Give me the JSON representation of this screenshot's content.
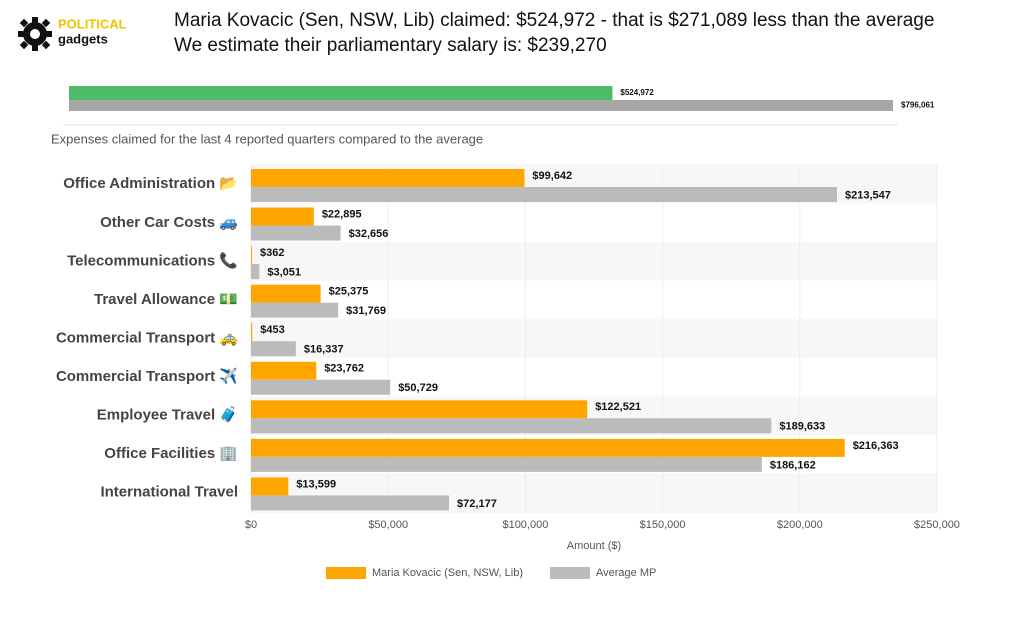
{
  "logo": {
    "top": "POLITICAL",
    "bottom": "gadgets"
  },
  "header": {
    "line1": "Maria Kovacic (Sen, NSW, Lib) claimed: $524,972 - that is $271,089 less than the average",
    "line2": "We estimate their parliamentary salary is: $239,270"
  },
  "chart_data": [
    {
      "type": "bar",
      "orientation": "horizontal",
      "values": [
        524972,
        796061
      ],
      "value_labels": [
        "$524,972",
        "$796,061"
      ],
      "colors": [
        "#4dbb6a",
        "#a6a6a6"
      ]
    },
    {
      "type": "bar",
      "orientation": "horizontal",
      "title": "Expenses claimed for the last 4 reported quarters compared to the average",
      "xlabel": "Amount ($)",
      "categories": [
        "Office Administration 📂",
        "Other Car Costs 🚙",
        "Telecommunications 📞",
        "Travel Allowance 💵",
        "Commercial Transport 🚕",
        "Commercial Transport ✈️",
        "Employee Travel 🧳",
        "Office Facilities 🏢",
        "International Travel"
      ],
      "series": [
        {
          "name": "Maria Kovacic  (Sen, NSW, Lib)",
          "color": "#ffa500",
          "values": [
            99642,
            22895,
            362,
            25375,
            453,
            23762,
            122521,
            216363,
            13599
          ],
          "value_labels": [
            "$99,642",
            "$22,895",
            "$362",
            "$25,375",
            "$453",
            "$23,762",
            "$122,521",
            "$216,363",
            "$13,599"
          ]
        },
        {
          "name": "Average MP",
          "color": "#bbbbbb",
          "values": [
            213547,
            32656,
            3051,
            31769,
            16337,
            50729,
            189633,
            186162,
            72177
          ],
          "value_labels": [
            "$213,547",
            "$32,656",
            "$3,051",
            "$31,769",
            "$16,337",
            "$50,729",
            "$189,633",
            "$186,162",
            "$72,177"
          ]
        }
      ],
      "xlim": [
        0,
        250000
      ],
      "xticks": [
        {
          "value": 0,
          "label": "$0"
        },
        {
          "value": 50000,
          "label": "$50,000"
        },
        {
          "value": 100000,
          "label": "$100,000"
        },
        {
          "value": 150000,
          "label": "$150,000"
        },
        {
          "value": 200000,
          "label": "$200,000"
        },
        {
          "value": 250000,
          "label": "$250,000"
        }
      ],
      "legend": "bottom"
    }
  ]
}
